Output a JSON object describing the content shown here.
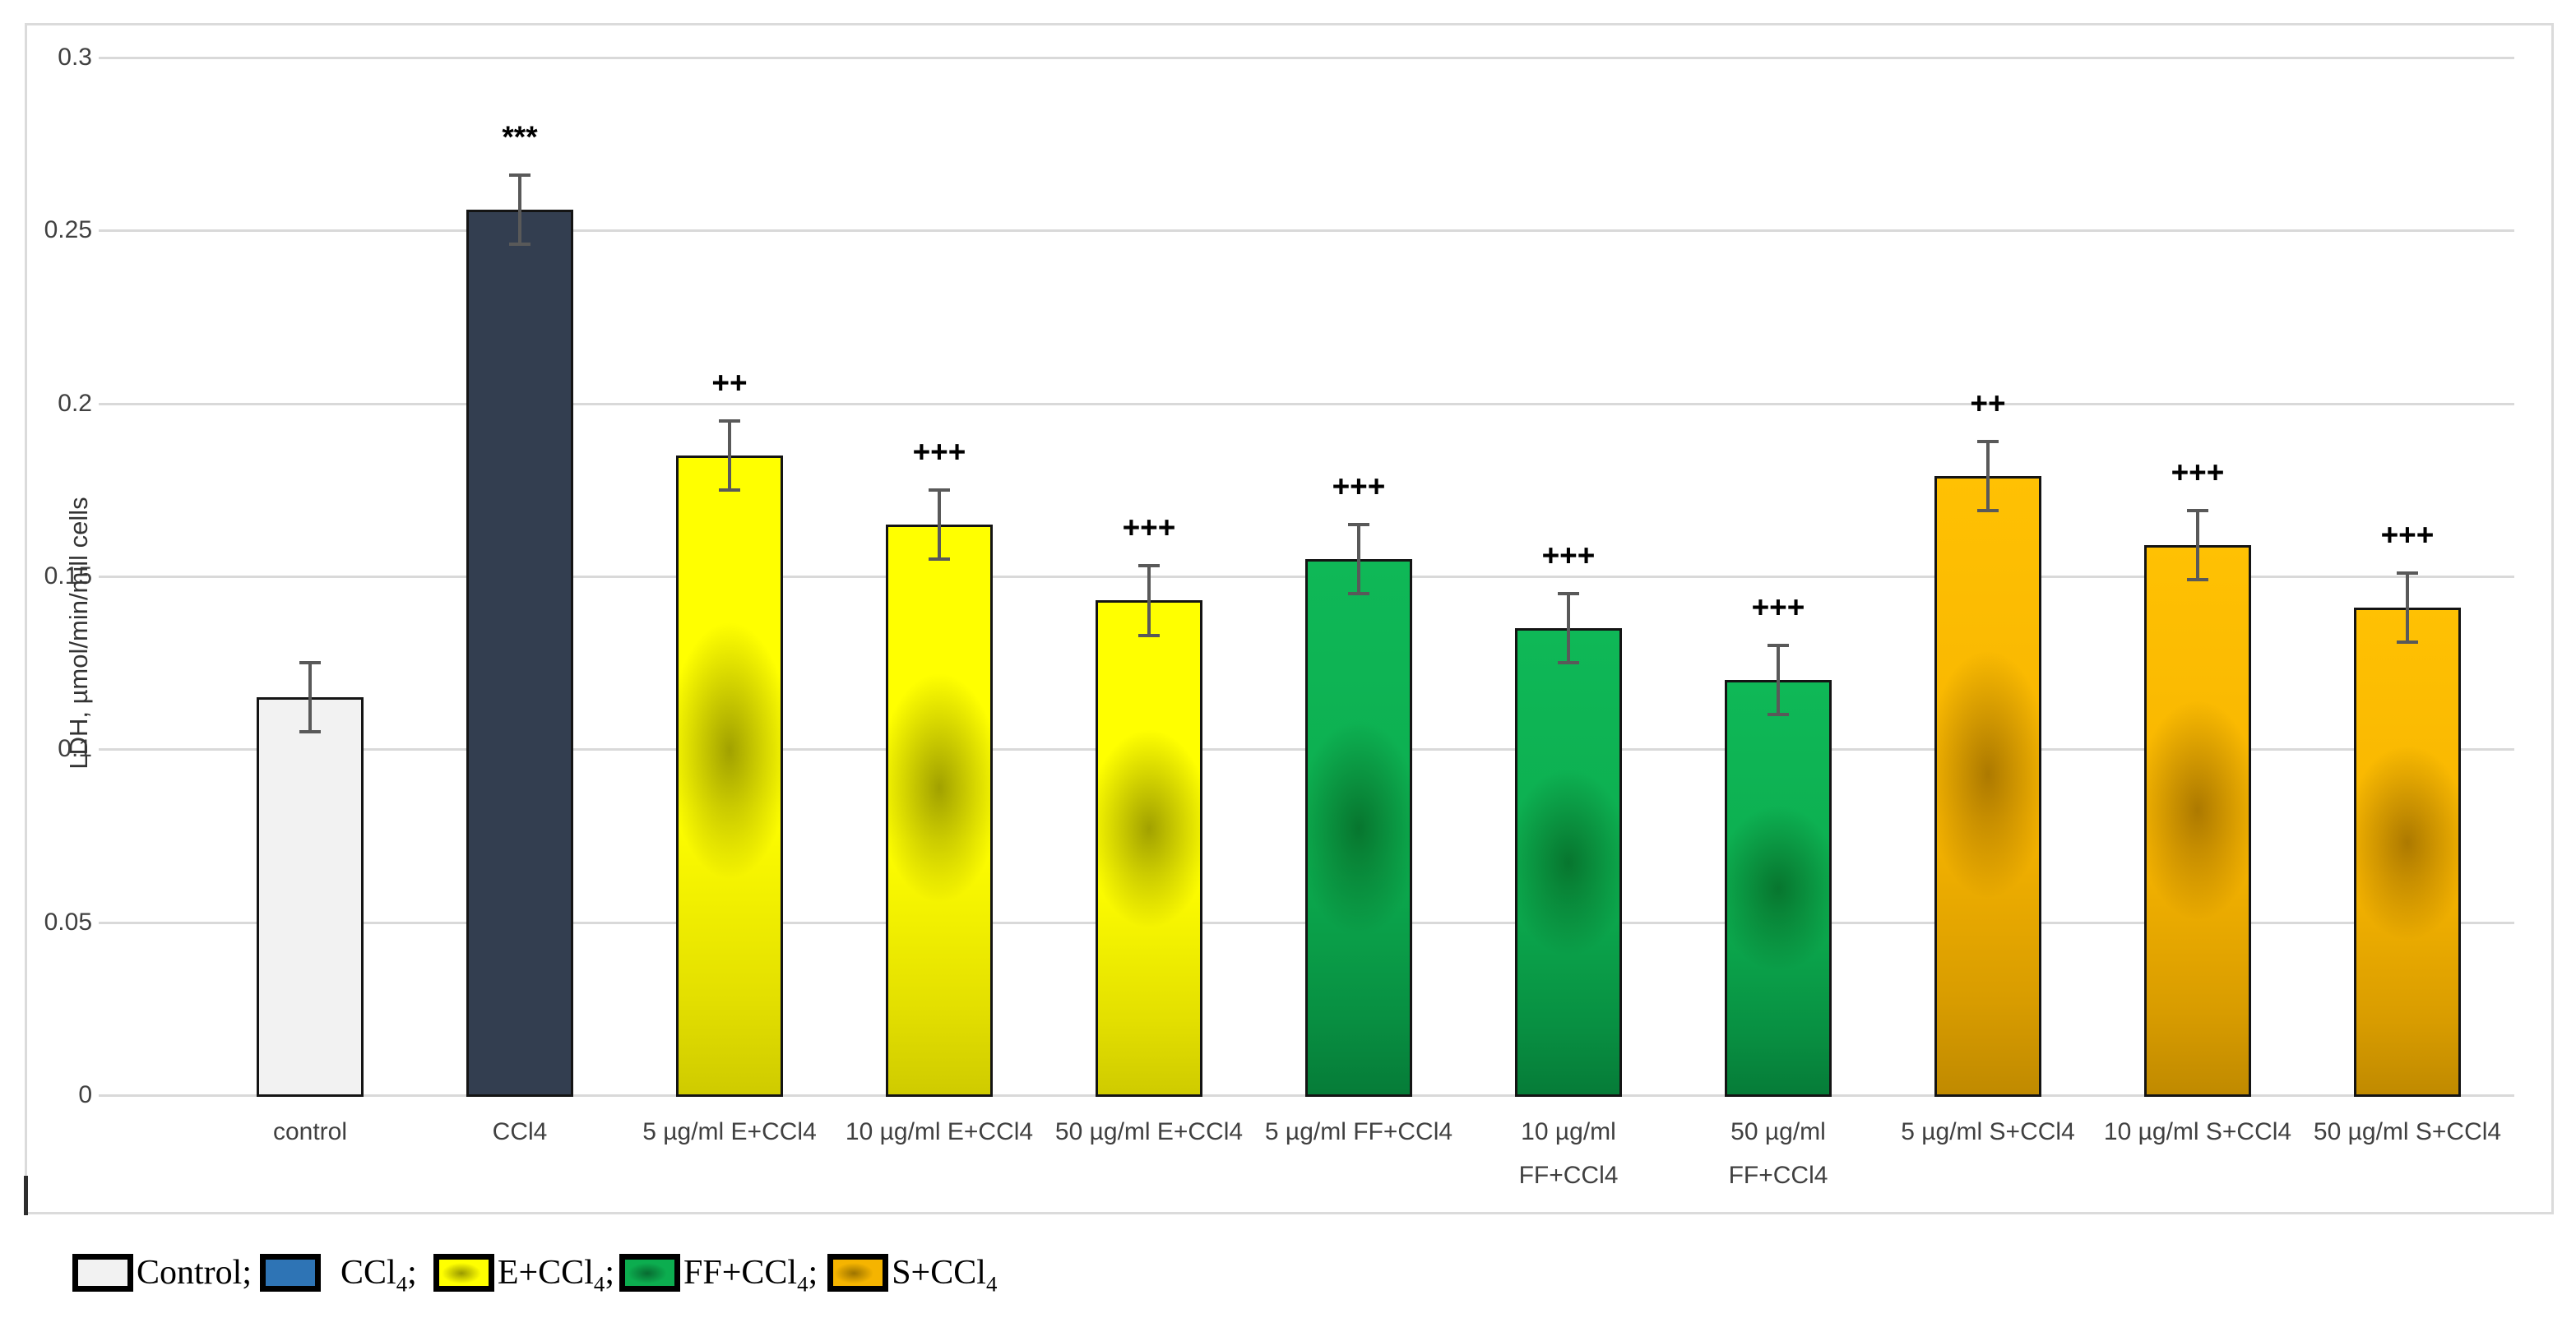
{
  "chart_data": {
    "type": "bar",
    "title": "",
    "ylabel": "LDH, µmol/min/mill cells",
    "xlabel": "",
    "ylim": [
      0,
      0.3
    ],
    "yticks": [
      0,
      0.05,
      0.1,
      0.15,
      0.2,
      0.25,
      0.3
    ],
    "grid": true,
    "legend_position": "bottom-left",
    "categories": [
      "control",
      "CCl4",
      "5 µg/ml E+CCl4",
      "10 µg/ml E+CCl4",
      "50 µg/ml E+CCl4",
      "5 µg/ml FF+CCl4",
      "10 µg/ml FF+CCl4",
      "50 µg/ml FF+CCl4",
      "5 µg/ml S+CCl4",
      "10 µg/ml S+CCl4",
      "50 µg/ml S+CCl4"
    ],
    "values": [
      0.115,
      0.256,
      0.185,
      0.165,
      0.143,
      0.155,
      0.135,
      0.12,
      0.179,
      0.159,
      0.141
    ],
    "errors": [
      0.01,
      0.01,
      0.01,
      0.01,
      0.01,
      0.01,
      0.01,
      0.01,
      0.01,
      0.01,
      0.01
    ],
    "annotations": [
      "",
      "***",
      "++",
      "+++",
      "+++",
      "+++",
      "+++",
      "+++",
      "++",
      "+++",
      "+++"
    ],
    "legend": [
      "Control",
      "CCl4",
      "E+CCl4",
      "FF+CCl4",
      "S+CCl4"
    ]
  },
  "chart": {
    "y_axis": {
      "title": "LDH, µmol/min/mill cells",
      "ticks": [
        "0",
        "0.05",
        "0.1",
        "0.15",
        "0.2",
        "0.25",
        "0.3"
      ],
      "tick_values": [
        0,
        0.05,
        0.1,
        0.15,
        0.2,
        0.25,
        0.3
      ]
    },
    "bars": [
      {
        "label_lines": [
          "control"
        ],
        "value": 0.115,
        "error": 0.01,
        "annotation": "",
        "style": "control"
      },
      {
        "label_lines": [
          "CCl4"
        ],
        "value": 0.256,
        "error": 0.01,
        "annotation": "***",
        "style": "ccl4"
      },
      {
        "label_lines": [
          "5 µg/ml E+CCl4"
        ],
        "value": 0.185,
        "error": 0.01,
        "annotation": "++",
        "style": "e"
      },
      {
        "label_lines": [
          "10 µg/ml E+CCl4"
        ],
        "value": 0.165,
        "error": 0.01,
        "annotation": "+++",
        "style": "e"
      },
      {
        "label_lines": [
          "50 µg/ml E+CCl4"
        ],
        "value": 0.143,
        "error": 0.01,
        "annotation": "+++",
        "style": "e"
      },
      {
        "label_lines": [
          "5 µg/ml FF+CCl4"
        ],
        "value": 0.155,
        "error": 0.01,
        "annotation": "+++",
        "style": "ff"
      },
      {
        "label_lines": [
          "10 µg/ml",
          "FF+CCl4"
        ],
        "value": 0.135,
        "error": 0.01,
        "annotation": "+++",
        "style": "ff"
      },
      {
        "label_lines": [
          "50 µg/ml",
          "FF+CCl4"
        ],
        "value": 0.12,
        "error": 0.01,
        "annotation": "+++",
        "style": "ff"
      },
      {
        "label_lines": [
          "5 µg/ml S+CCl4"
        ],
        "value": 0.179,
        "error": 0.01,
        "annotation": "++",
        "style": "s"
      },
      {
        "label_lines": [
          "10 µg/ml S+CCl4"
        ],
        "value": 0.159,
        "error": 0.01,
        "annotation": "+++",
        "style": "s"
      },
      {
        "label_lines": [
          "50 µg/ml S+CCl4"
        ],
        "value": 0.141,
        "error": 0.01,
        "annotation": "+++",
        "style": "s"
      }
    ],
    "legend": {
      "items": [
        {
          "pre": "Control",
          "sub": "",
          "post": ";",
          "style": "control"
        },
        {
          "pre": "CCl",
          "sub": "4",
          "post": ";",
          "style": "ccl4"
        },
        {
          "pre": "E+CCl",
          "sub": "4",
          "post": ";",
          "style": "e"
        },
        {
          "pre": "FF+CCl",
          "sub": "4",
          "post": ";",
          "style": "ff"
        },
        {
          "pre": "S+CCl",
          "sub": "4",
          "post": "",
          "style": "s"
        }
      ]
    },
    "colors": {
      "grid": "#D9D9D9",
      "chart_border": "#DBDBDB",
      "axis_text": "#404040",
      "error_bar": "#595959",
      "bar_outline": "#141414",
      "annotation": "#000000",
      "control_fill": "#F2F2F2",
      "ccl4_bar_fill": "#333E50",
      "ccl4_legend_fill": "#2E74B5",
      "e_base": "#FFFF00",
      "ff_base": "#0CAD4F",
      "s_base": "#F8B600"
    }
  }
}
